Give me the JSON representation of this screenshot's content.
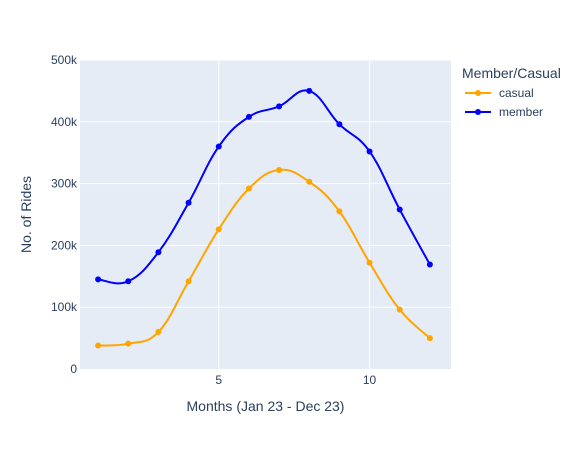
{
  "chart_data": {
    "type": "line",
    "title": "",
    "xlabel": "Months (Jan 23 - Dec 23)",
    "ylabel": "No. of Rides",
    "xlim": [
      0.4,
      12.7
    ],
    "ylim": [
      0,
      500000
    ],
    "x_ticks": [
      5,
      10
    ],
    "x_tick_labels": [
      "5",
      "10"
    ],
    "y_ticks": [
      0,
      100000,
      200000,
      300000,
      400000,
      500000
    ],
    "y_tick_labels": [
      "0",
      "100k",
      "200k",
      "300k",
      "400k",
      "500k"
    ],
    "grid": true,
    "legend_title": "Member/Casual",
    "legend_position": "top-right, outside plot",
    "x": [
      1,
      2,
      3,
      4,
      5,
      6,
      7,
      8,
      9,
      10,
      11,
      12
    ],
    "series": [
      {
        "name": "casual",
        "color": "#ffa500",
        "values": [
          38000,
          41000,
          60000,
          142000,
          226000,
          292000,
          322000,
          303000,
          255000,
          172000,
          96000,
          50000
        ]
      },
      {
        "name": "member",
        "color": "#0000ff",
        "values": [
          145000,
          142000,
          189000,
          269000,
          360000,
          408000,
          425000,
          450000,
          396000,
          352000,
          258000,
          169000
        ]
      }
    ]
  }
}
